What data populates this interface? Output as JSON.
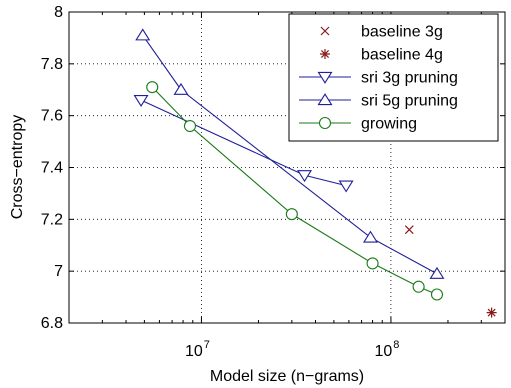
{
  "chart_data": {
    "type": "line",
    "xlabel": "Model size (n−grams)",
    "ylabel": "Cross−entropy",
    "xscale": "log",
    "xlim": [
      2000000,
      400000000
    ],
    "ylim": [
      6.8,
      8
    ],
    "x_ticks": [
      {
        "value": 10000000,
        "base": "10",
        "exp": "7"
      },
      {
        "value": 100000000,
        "base": "10",
        "exp": "8"
      }
    ],
    "y_ticks": [
      "6.8",
      "7",
      "7.2",
      "7.4",
      "7.6",
      "7.8",
      "8"
    ],
    "grid": "dotted",
    "legend_position": "top-right",
    "series": [
      {
        "name": "baseline 3g",
        "color": "#8b1a1a",
        "marker": "x",
        "line": false,
        "points": [
          [
            125000000,
            7.16
          ]
        ]
      },
      {
        "name": "baseline 4g",
        "color": "#8b1a1a",
        "marker": "asterisk",
        "line": false,
        "points": [
          [
            340000000,
            6.84
          ]
        ]
      },
      {
        "name": "sri 3g pruning",
        "color": "#1f1f99",
        "marker": "triangle-down",
        "line": true,
        "points": [
          [
            4800000,
            7.66
          ],
          [
            35000000,
            7.37
          ],
          [
            58000000,
            7.33
          ]
        ]
      },
      {
        "name": "sri 5g pruning",
        "color": "#1f1f99",
        "marker": "triangle-up",
        "line": true,
        "points": [
          [
            4900000,
            7.91
          ],
          [
            7800000,
            7.7
          ],
          [
            78000000,
            7.13
          ],
          [
            175000000,
            6.99
          ]
        ]
      },
      {
        "name": "growing",
        "color": "#1a7a1a",
        "marker": "circle",
        "line": true,
        "points": [
          [
            5500000,
            7.71
          ],
          [
            8700000,
            7.56
          ],
          [
            30000000,
            7.22
          ],
          [
            80000000,
            7.03
          ],
          [
            140000000,
            6.94
          ],
          [
            175000000,
            6.91
          ]
        ]
      }
    ]
  }
}
